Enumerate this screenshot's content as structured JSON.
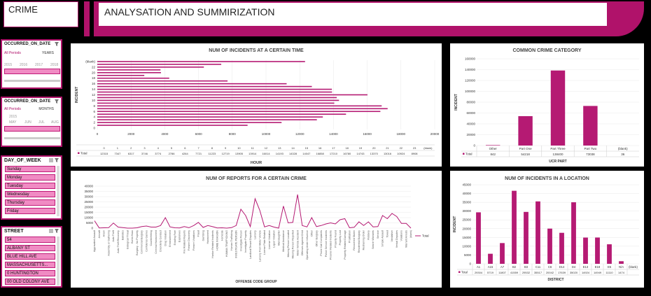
{
  "header": {
    "crime_title": "CRIME",
    "main_title": "ANALYSATION AND SUMMIRIZATION"
  },
  "colors": {
    "accent": "#b0126a",
    "bar": "#b51a73",
    "light": "#f08bc3"
  },
  "slicer_year": {
    "title": "OCCURRED_ON_DATE",
    "periods": "All Periods",
    "level": "YEARS",
    "ticks": [
      "2015",
      "2016",
      "2017",
      "2018"
    ]
  },
  "slicer_month": {
    "title": "OCCURRED_ON_DATE",
    "periods": "All Periods",
    "level": "MONTHS",
    "year": "2015",
    "ticks": [
      "MAY",
      "JUN",
      "JUL",
      "AUG"
    ]
  },
  "slicer_day": {
    "title": "DAY_OF_WEEK",
    "items": [
      "Sunday",
      "Monday",
      "Tuesday",
      "Wednesday",
      "Thursday",
      "Friday"
    ]
  },
  "slicer_street": {
    "title": "STREET",
    "items": [
      "54",
      "ALBANY ST",
      "BLUE HILL AVE",
      "MASSACHUSETTS...",
      "0 HUNTINGTON",
      "00 OLD COLONY AVE"
    ]
  },
  "chart_data": [
    {
      "type": "bar",
      "orientation": "horizontal",
      "title": "NUM OF INCIDENTS AT A CERTAIN TIME",
      "xlabel": "HOUR",
      "ylabel": "INCIDENT",
      "xlim": [
        0,
        20000
      ],
      "xticks": [
        "0",
        "2000",
        "4000",
        "6000",
        "8000",
        "10000",
        "12000",
        "14000",
        "16000",
        "18000",
        "20000"
      ],
      "yticks": [
        "(blank)",
        "22",
        "20",
        "18",
        "16",
        "14",
        "12",
        "10",
        "8",
        "6",
        "4",
        "2",
        "0"
      ],
      "categories": [
        "0",
        "1",
        "2",
        "3",
        "4",
        "5",
        "6",
        "7",
        "8",
        "9",
        "10",
        "11",
        "12",
        "13",
        "14",
        "15",
        "16",
        "17",
        "18",
        "19",
        "20",
        "21",
        "22",
        "23",
        "(blank)"
      ],
      "values": [
        12315,
        7347,
        6317,
        3746,
        3774,
        2786,
        4264,
        7721,
        11223,
        12719,
        13905,
        13914,
        16014,
        14193,
        14328,
        14047,
        16858,
        17210,
        16780,
        14743,
        13370,
        13016,
        10924,
        8908,
        0
      ],
      "table_label": "Total"
    },
    {
      "type": "bar",
      "title": "COMMON CRIME CATEGORY",
      "xlabel": "UCR PART",
      "ylabel": "INCIDENT",
      "ylim": [
        0,
        160000
      ],
      "yticks": [
        "0",
        "20000",
        "40000",
        "60000",
        "80000",
        "100000",
        "120000",
        "140000",
        "160000"
      ],
      "categories": [
        "Other",
        "Part One",
        "Part Three",
        "Part Two",
        "(blank)"
      ],
      "values": [
        842,
        54218,
        138400,
        73038,
        36
      ],
      "table_label": "Total"
    },
    {
      "type": "line",
      "title": "NUM OF REPORTS FOR A CERTAIN CRIME",
      "xlabel": "OFFENSE CODE GROUP",
      "legend": "Total",
      "ylim": [
        0,
        40000
      ],
      "yticks": [
        "0",
        "5000",
        "10000",
        "15000",
        "20000",
        "25000",
        "30000",
        "35000",
        "40000"
      ],
      "categories": [
        "Aggravated Assault",
        "Aircraft",
        "Arson",
        "Assembly or Gathering",
        "Auto Theft",
        "Auto Theft Recovery",
        "Ballistics",
        "Biological Threat",
        "Bomb Hoax",
        "Burglary - No Property",
        "Commercial Burglary",
        "Confidence Games",
        "Counterfeiting",
        "Criminal Harassment",
        "Disorderly Conduct",
        "Drug Violation",
        "Embezzlement",
        "Evading Fare",
        "Explosives",
        "Fire Related Reports",
        "Firearm Discovery",
        "Firearm Violations",
        "Fraud",
        "Gambling",
        "Harassment",
        "Harbor Related Incidents",
        "HOME INVASION",
        "Homicide",
        "HUMAN TRAFFICKING",
        "Human Trafficking",
        "INVESTIGATE PERSON",
        "Investigate Person",
        "Investigate Property",
        "Landlord/Tenant Disputes",
        "Larceny",
        "Larceny From Motor Vehicle",
        "License Plate Related",
        "License Violation",
        "Liquor Violation",
        "Manslaughter",
        "Medical Assistance",
        "Missing Person Located",
        "Missing Person Reported",
        "Motor Vehicle Accident",
        "Offenses Against Child",
        "Operating Under Influence",
        "Other",
        "Other Burglary",
        "Phone Call Complaints",
        "Police Service Incidents",
        "Prisoner Related Incidents",
        "Property Found",
        "Property Lost",
        "Property Related Damage",
        "Prostitution",
        "Recovered Stolen",
        "Residential Burglary",
        "Restraining Order",
        "Robbery",
        "Search Warrants",
        "Service",
        "Simple Assault",
        "Towed",
        "Vandalism",
        "Verbal Disputes",
        "Violations",
        "Warrant Arrests",
        "(blank)"
      ],
      "values": [
        7000,
        200,
        300,
        500,
        4800,
        1000,
        500,
        20,
        30,
        300,
        1500,
        2000,
        1000,
        1000,
        2500,
        10000,
        1200,
        300,
        200,
        1500,
        400,
        2500,
        5500,
        700,
        2500,
        1400,
        200,
        300,
        10,
        500,
        2500,
        18000,
        12000,
        1500,
        28000,
        17000,
        1200,
        2500,
        1000,
        10,
        21000,
        5000,
        5500,
        32000,
        2500,
        1200,
        10000,
        1500,
        2500,
        4000,
        5000,
        4000,
        8000,
        9000,
        300,
        800,
        6000,
        2500,
        6000,
        1200,
        1500,
        12000,
        9000,
        14000,
        11000,
        4500,
        4500,
        0
      ]
    },
    {
      "type": "bar",
      "title": "NUM OF INCIDENTS IN A LOCATION",
      "xlabel": "DISTRICT",
      "ylabel": "INCIDENT",
      "ylim": [
        0,
        45000
      ],
      "yticks": [
        "0",
        "5000",
        "10000",
        "15000",
        "20000",
        "25000",
        "30000",
        "35000",
        "40000",
        "45000"
      ],
      "categories": [
        "A1",
        "A15",
        "A7",
        "B2",
        "B3",
        "C11",
        "C6",
        "D14",
        "D4",
        "E13",
        "E18",
        "E5",
        "N/A",
        "(blank)"
      ],
      "values": [
        29304,
        5719,
        11807,
        41559,
        29532,
        35517,
        20042,
        17639,
        35020,
        14924,
        14949,
        11110,
        1474,
        0
      ],
      "table_label": "Total"
    }
  ]
}
